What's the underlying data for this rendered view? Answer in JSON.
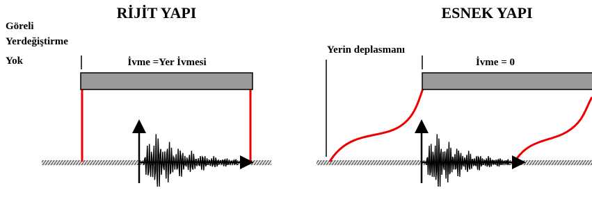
{
  "left": {
    "title": "RİJİT YAPI",
    "note": [
      "Göreli",
      "Yerdeğiştirme",
      "Yok"
    ],
    "label": "İvme =Yer İvmesi"
  },
  "right": {
    "title": "ESNEK YAPI",
    "displacement_label": "Yerin deplasmanı",
    "label": "İvme = 0"
  }
}
